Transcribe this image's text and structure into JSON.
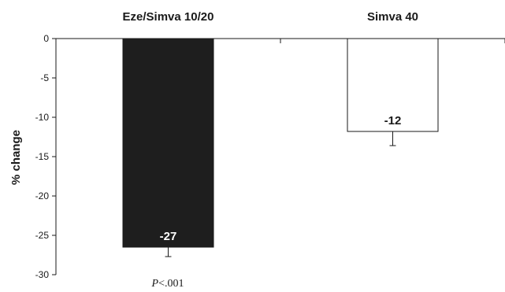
{
  "chart_data": {
    "type": "bar",
    "title": "",
    "xlabel": "",
    "ylabel": "% change",
    "ylim": [
      -30,
      0
    ],
    "yticks": [
      0,
      -5,
      -10,
      -15,
      -20,
      -25,
      -30
    ],
    "categories": [
      "Eze/Simva 10/20",
      "Simva 40"
    ],
    "values": [
      -26.5,
      -11.8
    ],
    "value_labels": [
      "-27",
      "-12"
    ],
    "error_bars": [
      1.2,
      1.8
    ],
    "bar_colors": [
      "#1e1e1e",
      "#ffffff"
    ],
    "value_label_colors": [
      "#ffffff",
      "#1a1a1a"
    ],
    "grid": false,
    "annotation": {
      "italic_part": "P",
      "rest": "<.001"
    }
  }
}
